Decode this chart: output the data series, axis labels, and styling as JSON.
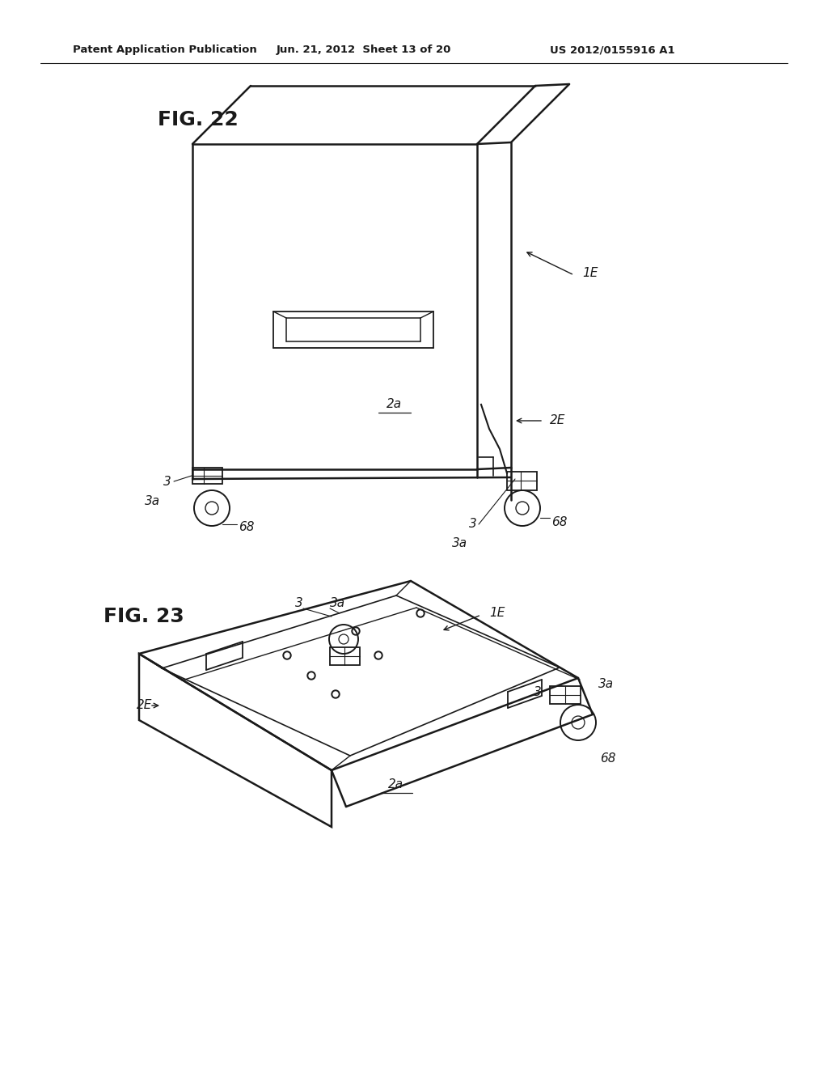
{
  "background_color": "#ffffff",
  "header_left": "Patent Application Publication",
  "header_center": "Jun. 21, 2012  Sheet 13 of 20",
  "header_right": "US 2012/0155916 A1",
  "fig22_label": "FIG. 22",
  "fig23_label": "FIG. 23",
  "line_color": "#1a1a1a",
  "text_color": "#1a1a1a"
}
